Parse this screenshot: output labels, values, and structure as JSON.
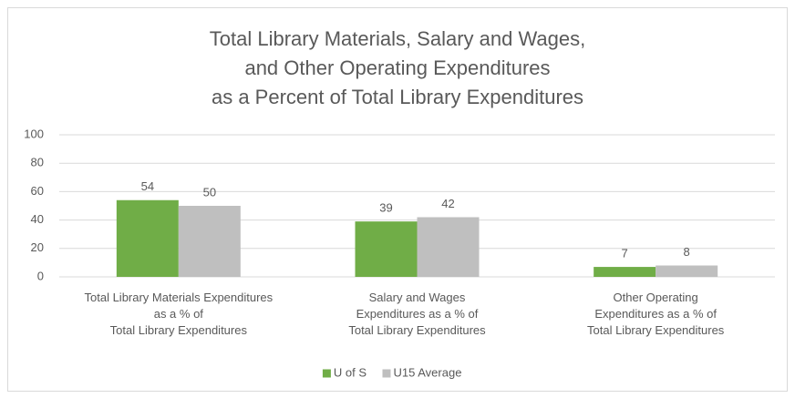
{
  "chart_data": {
    "type": "bar",
    "title": "Total Library Materials, Salary and Wages,\nand Other Operating Expenditures\nas a Percent of Total Library Expenditures",
    "categories": [
      "Total Library Materials Expenditures\nas a % of\nTotal Library Expenditures",
      "Salary and Wages\nExpenditures as a % of\nTotal Library Expenditures",
      "Other Operating\nExpenditures as a % of\nTotal Library Expenditures"
    ],
    "series": [
      {
        "name": "U of S",
        "color": "#70ad47",
        "values": [
          54,
          39,
          7
        ]
      },
      {
        "name": "U15 Average",
        "color": "#bfbfbf",
        "values": [
          50,
          42,
          8
        ]
      }
    ],
    "ylim": [
      0,
      100
    ],
    "yticks": [
      0,
      20,
      40,
      60,
      80,
      100
    ],
    "grid": true,
    "legend": "bottom"
  }
}
